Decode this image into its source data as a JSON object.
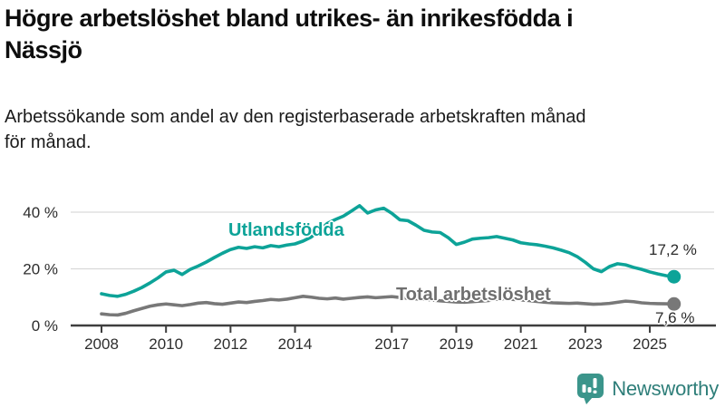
{
  "header": {
    "title_lines": [
      "Högre arbetslöshet bland utrikes- än inrikesfödda i",
      "Nässjö"
    ],
    "subtitle_lines": [
      "Arbetssökande som andel av den registerbaserade arbetskraften månad",
      "för månad."
    ]
  },
  "branding": {
    "logo_text": "Newsworthy",
    "icon_color": "#3b958b",
    "text_color": "#2e7e79"
  },
  "chart_data": {
    "type": "line",
    "title": "Högre arbetslöshet bland utrikes- än inrikesfödda i Nässjö",
    "xlabel": "",
    "ylabel": "Arbetssökande som andel av den registerbaserade arbetskraften (%)",
    "ylim": [
      0,
      45
    ],
    "grid": true,
    "legend_position": "inline",
    "unit": "%",
    "x": [
      2008,
      2008.25,
      2008.5,
      2008.75,
      2009,
      2009.25,
      2009.5,
      2009.75,
      2010,
      2010.25,
      2010.5,
      2010.75,
      2011,
      2011.25,
      2011.5,
      2011.75,
      2012,
      2012.25,
      2012.5,
      2012.75,
      2013,
      2013.25,
      2013.5,
      2013.75,
      2014,
      2014.25,
      2014.5,
      2014.75,
      2015,
      2015.25,
      2015.5,
      2015.75,
      2016,
      2016.25,
      2016.5,
      2016.75,
      2017,
      2017.25,
      2017.5,
      2017.75,
      2018,
      2018.25,
      2018.5,
      2018.75,
      2019,
      2019.25,
      2019.5,
      2019.75,
      2020,
      2020.25,
      2020.5,
      2020.75,
      2021,
      2021.25,
      2021.5,
      2021.75,
      2022,
      2022.25,
      2022.5,
      2022.75,
      2023,
      2023.25,
      2023.5,
      2023.75,
      2024,
      2024.25,
      2024.5,
      2024.75,
      2025,
      2025.25,
      2025.5,
      2025.75
    ],
    "series": [
      {
        "name": "Utlandsfödda",
        "color": "#0da398",
        "end_label": "17,2 %",
        "end_value": 17.2,
        "values": [
          11.2,
          10.6,
          10.3,
          11.0,
          12.1,
          13.4,
          15.0,
          16.8,
          18.9,
          19.5,
          18.0,
          19.8,
          21.0,
          22.4,
          24.0,
          25.5,
          26.8,
          27.6,
          27.2,
          27.8,
          27.4,
          28.2,
          27.8,
          28.4,
          28.8,
          29.8,
          31.2,
          33.4,
          36.0,
          37.4,
          38.6,
          40.4,
          42.3,
          39.7,
          40.8,
          41.4,
          39.6,
          37.3,
          37.0,
          35.4,
          33.6,
          33.0,
          32.8,
          31.0,
          28.6,
          29.4,
          30.5,
          30.8,
          31.0,
          31.4,
          30.8,
          30.2,
          29.2,
          28.8,
          28.5,
          28.0,
          27.4,
          26.6,
          25.7,
          24.3,
          22.3,
          20.0,
          19.0,
          20.8,
          21.8,
          21.4,
          20.5,
          19.8,
          18.9,
          18.2,
          17.6,
          17.2
        ]
      },
      {
        "name": "Total arbetslöshet",
        "color": "#787878",
        "end_label": "7,6 %",
        "end_value": 7.6,
        "values": [
          4.1,
          3.8,
          3.7,
          4.3,
          5.2,
          6.0,
          6.8,
          7.3,
          7.6,
          7.3,
          7.0,
          7.4,
          7.9,
          8.1,
          7.7,
          7.5,
          7.9,
          8.3,
          8.1,
          8.5,
          8.8,
          9.2,
          9.0,
          9.3,
          9.8,
          10.3,
          10.0,
          9.6,
          9.4,
          9.7,
          9.3,
          9.6,
          9.9,
          10.1,
          9.8,
          10.0,
          10.2,
          9.9,
          9.6,
          9.4,
          9.2,
          9.0,
          8.7,
          8.5,
          8.3,
          8.2,
          8.4,
          8.6,
          8.8,
          9.3,
          9.5,
          9.2,
          9.0,
          8.8,
          8.5,
          8.2,
          8.0,
          7.9,
          7.8,
          7.9,
          7.7,
          7.5,
          7.6,
          7.8,
          8.2,
          8.6,
          8.4,
          8.0,
          7.8,
          7.7,
          7.65,
          7.6
        ]
      }
    ],
    "yticks": [
      {
        "value": 0,
        "label": "0 %"
      },
      {
        "value": 20,
        "label": "20 %"
      },
      {
        "value": 40,
        "label": "40 %"
      }
    ],
    "xticks": [
      {
        "year": 2008,
        "label": "2008"
      },
      {
        "year": 2010,
        "label": "2010"
      },
      {
        "year": 2012,
        "label": "2012"
      },
      {
        "year": 2014,
        "label": "2014"
      },
      {
        "year": 2017,
        "label": "2017"
      },
      {
        "year": 2019,
        "label": "2019"
      },
      {
        "year": 2021,
        "label": "2021"
      },
      {
        "year": 2023,
        "label": "2023"
      },
      {
        "year": 2025,
        "label": "2025"
      }
    ]
  }
}
